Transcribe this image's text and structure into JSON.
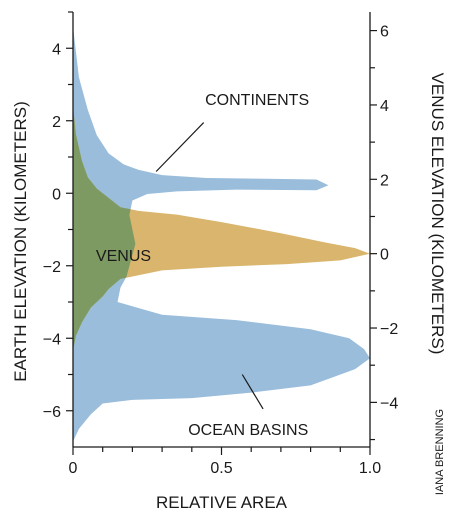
{
  "chart_data": {
    "type": "area",
    "xlabel": "RELATIVE AREA",
    "ylabel_left": "EARTH ELEVATION (KILOMETERS)",
    "ylabel_right": "VENUS ELEVATION (KILOMETERS)",
    "xlim": [
      0,
      1
    ],
    "ylim_left": [
      -7,
      5
    ],
    "ylim_right": [
      -5.2,
      6.5
    ],
    "x_ticks": [
      0,
      0.5,
      1.0
    ],
    "x_tick_labels": [
      "0",
      "0.5",
      "1.0"
    ],
    "y_ticks_left": [
      4,
      2,
      0,
      -2,
      -4,
      -6
    ],
    "y_tick_labels_left": [
      "4",
      "2",
      "0",
      "−2",
      "−4",
      "−6"
    ],
    "y_ticks_right": [
      6,
      4,
      2,
      0,
      -2,
      -4
    ],
    "y_tick_labels_right": [
      "6",
      "4",
      "2",
      "0",
      "−2",
      "−4"
    ],
    "grid": false,
    "colors": {
      "earth": "#99bddb",
      "venus": "#d9b56e",
      "overlap": "#7e9a63",
      "axis": "#1a1a1a"
    },
    "series": [
      {
        "key": "earth",
        "axis": "left",
        "points": [
          [
            0,
            4.6
          ],
          [
            0.02,
            3.2
          ],
          [
            0.05,
            2.3
          ],
          [
            0.08,
            1.6
          ],
          [
            0.12,
            1.1
          ],
          [
            0.17,
            0.8
          ],
          [
            0.22,
            0.65
          ],
          [
            0.3,
            0.5
          ],
          [
            0.45,
            0.42
          ],
          [
            0.65,
            0.4
          ],
          [
            0.82,
            0.38
          ],
          [
            0.86,
            0.22
          ],
          [
            0.82,
            0.08
          ],
          [
            0.55,
            0.1
          ],
          [
            0.35,
            0.05
          ],
          [
            0.25,
            -0.02
          ],
          [
            0.2,
            -0.2
          ],
          [
            0.19,
            -0.6
          ],
          [
            0.21,
            -1.4
          ],
          [
            0.18,
            -2.3
          ],
          [
            0.16,
            -2.6
          ],
          [
            0.15,
            -3.0
          ],
          [
            0.3,
            -3.35
          ],
          [
            0.55,
            -3.5
          ],
          [
            0.8,
            -3.75
          ],
          [
            0.93,
            -4.0
          ],
          [
            0.98,
            -4.3
          ],
          [
            1.0,
            -4.55
          ],
          [
            0.95,
            -4.85
          ],
          [
            0.8,
            -5.3
          ],
          [
            0.6,
            -5.5
          ],
          [
            0.4,
            -5.65
          ],
          [
            0.2,
            -5.7
          ],
          [
            0.1,
            -5.8
          ],
          [
            0.06,
            -6.1
          ],
          [
            0.02,
            -6.5
          ],
          [
            0,
            -6.85
          ]
        ]
      },
      {
        "key": "venus",
        "axis": "right",
        "points": [
          [
            0,
            3.95
          ],
          [
            0.01,
            3.2
          ],
          [
            0.03,
            2.5
          ],
          [
            0.05,
            2.05
          ],
          [
            0.08,
            1.75
          ],
          [
            0.12,
            1.5
          ],
          [
            0.16,
            1.25
          ],
          [
            0.22,
            1.15
          ],
          [
            0.35,
            1.05
          ],
          [
            0.5,
            0.85
          ],
          [
            0.7,
            0.55
          ],
          [
            0.85,
            0.3
          ],
          [
            0.95,
            0.15
          ],
          [
            1.0,
            0.0
          ],
          [
            0.9,
            -0.18
          ],
          [
            0.72,
            -0.28
          ],
          [
            0.5,
            -0.35
          ],
          [
            0.3,
            -0.45
          ],
          [
            0.16,
            -0.68
          ],
          [
            0.12,
            -0.95
          ],
          [
            0.1,
            -1.15
          ],
          [
            0.06,
            -1.45
          ],
          [
            0.03,
            -1.85
          ],
          [
            0.01,
            -2.2
          ],
          [
            0,
            -2.6
          ]
        ]
      }
    ],
    "annotations": [
      {
        "text": "CONTINENTS",
        "at": [
          0.62,
          2.6
        ],
        "pointer_from": [
          0.44,
          1.95
        ],
        "pointer_to": [
          0.28,
          0.6
        ],
        "axis": "left"
      },
      {
        "text": "VENUS",
        "at": [
          0.17,
          -1.7
        ],
        "axis": "left"
      },
      {
        "text": "OCEAN BASINS",
        "at": [
          0.59,
          -6.5
        ],
        "pointer_from": [
          0.64,
          -5.95
        ],
        "pointer_to": [
          0.57,
          -5.0
        ],
        "axis": "left"
      }
    ],
    "credit": "IANA BRENNING"
  }
}
